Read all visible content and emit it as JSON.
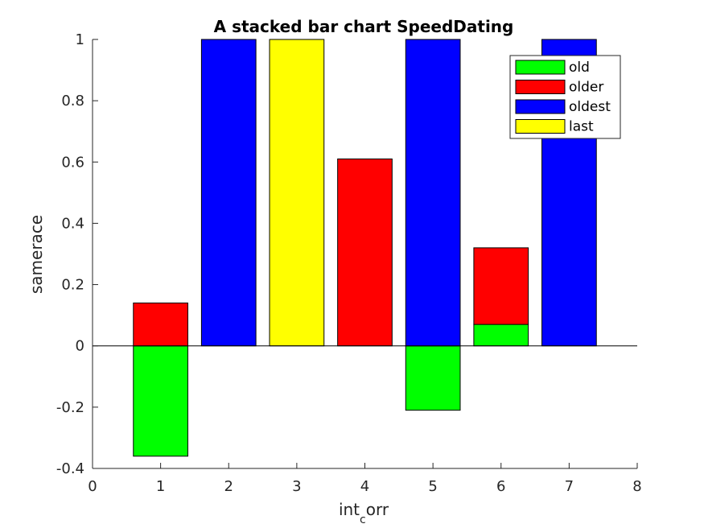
{
  "chart_data": {
    "type": "bar",
    "stacked": true,
    "title": "A stacked bar chart SpeedDating",
    "xlabel": "int",
    "xlabel_subscript": "c",
    "xlabel_suffix": "orr",
    "ylabel": "samerace",
    "x": [
      1,
      2,
      3,
      4,
      5,
      6,
      7
    ],
    "xlim": [
      0,
      8
    ],
    "ylim": [
      -0.4,
      1
    ],
    "xticks": [
      0,
      1,
      2,
      3,
      4,
      5,
      6,
      7,
      8
    ],
    "yticks": [
      -0.4,
      -0.2,
      0,
      0.2,
      0.4,
      0.6,
      0.8,
      1
    ],
    "legend_position": "top-right",
    "grid": false,
    "series": [
      {
        "name": "old",
        "color": "#00ff00",
        "values": [
          -0.36,
          0,
          0,
          0,
          -0.21,
          0.07,
          0
        ]
      },
      {
        "name": "older",
        "color": "#ff0000",
        "values": [
          0.14,
          0,
          0,
          0.61,
          0,
          0.25,
          0
        ]
      },
      {
        "name": "oldest",
        "color": "#0000ff",
        "values": [
          0,
          1,
          0,
          0,
          1,
          0,
          1
        ]
      },
      {
        "name": "last",
        "color": "#ffff00",
        "values": [
          0,
          0,
          1,
          0,
          0,
          0,
          0
        ]
      }
    ]
  }
}
